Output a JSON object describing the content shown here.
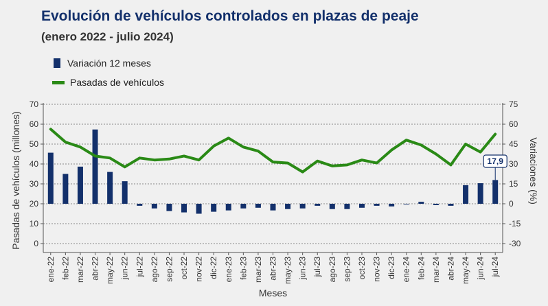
{
  "title": "Evolución de vehículos controlados en plazas de peaje",
  "subtitle": "(enero 2022 - julio 2024)",
  "legend": {
    "bars": "Variación 12 meses",
    "line": "Pasadas de vehículos"
  },
  "colors": {
    "bars": "#13306b",
    "line": "#2a8a16",
    "background": "#f0f0f0"
  },
  "chart_data": {
    "type": "bar+line",
    "title": "Evolución de vehículos controlados en plazas de peaje",
    "subtitle": "(enero 2022 - julio 2024)",
    "xlabel": "Meses",
    "ylabel_left": "Pasadas de vehículos (millones)",
    "ylabel_right": "Variaciones (%)",
    "ylim_left": [
      0,
      70
    ],
    "yticks_left": [
      0,
      10,
      20,
      30,
      40,
      50,
      60,
      70
    ],
    "ylim_right": [
      -30,
      75
    ],
    "yticks_right": [
      -30,
      -15,
      0,
      15,
      30,
      45,
      60,
      75
    ],
    "grid": "horizontal dashed",
    "legend_position": "top-left",
    "categories": [
      "ene-22",
      "feb-22",
      "mar-22",
      "abr-22",
      "may-22",
      "jun-22",
      "jul-22",
      "ago-22",
      "sep-22",
      "oct-22",
      "nov-22",
      "dic-22",
      "ene-23",
      "feb-23",
      "mar-23",
      "abr-23",
      "may-23",
      "jun-23",
      "jul-23",
      "ago-23",
      "sep-23",
      "oct-23",
      "nov-23",
      "dic-23",
      "ene-24",
      "feb-24",
      "mar-24",
      "abr-24",
      "may-24",
      "jun-24",
      "jul-24"
    ],
    "series": [
      {
        "name": "Variación 12 meses",
        "type": "bar",
        "axis": "right",
        "values": [
          38.5,
          22.5,
          28,
          56,
          24,
          17,
          -1.5,
          -3.5,
          -5.5,
          -6.5,
          -7.5,
          -6,
          -5,
          -3.5,
          -3,
          -5,
          -4,
          -3.5,
          -1.5,
          -4,
          -4,
          -3,
          -1.5,
          -2,
          -0.5,
          1.5,
          -1,
          -1.5,
          14,
          15.5,
          17.9
        ]
      },
      {
        "name": "Pasadas de vehículos",
        "type": "line",
        "axis": "left",
        "values": [
          57.5,
          51,
          48.5,
          44,
          43,
          38.5,
          43,
          42,
          42.5,
          44,
          42,
          49,
          53,
          48.5,
          46.5,
          41,
          40.5,
          36,
          41.5,
          39,
          39.5,
          42,
          40.5,
          47,
          52,
          49.5,
          45,
          39.5,
          50,
          46,
          55
        ]
      }
    ],
    "annotations": [
      {
        "category": "jul-24",
        "text": "17,9"
      }
    ]
  }
}
